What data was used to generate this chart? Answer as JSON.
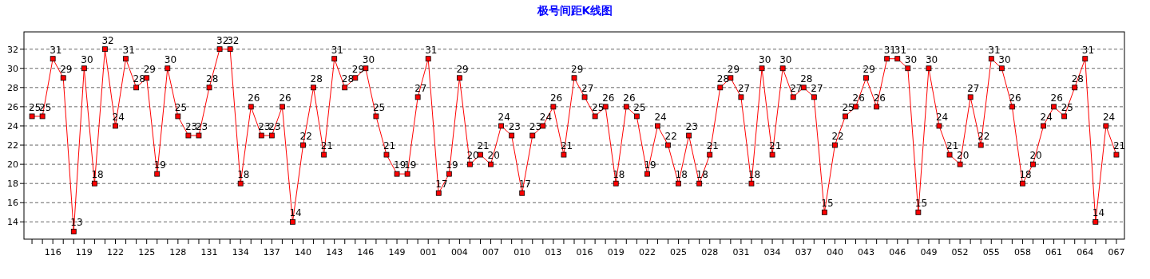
{
  "chart_data": {
    "type": "line",
    "title": "极号间距K线图",
    "categories": [
      null,
      null,
      "116",
      null,
      null,
      "119",
      null,
      null,
      "122",
      null,
      null,
      "125",
      null,
      null,
      "128",
      null,
      null,
      "131",
      null,
      null,
      "134",
      null,
      null,
      "137",
      null,
      null,
      "140",
      null,
      null,
      "143",
      null,
      null,
      "146",
      null,
      null,
      "149",
      null,
      null,
      "001",
      null,
      null,
      "004",
      null,
      null,
      "007",
      null,
      null,
      "010",
      null,
      null,
      "013",
      null,
      null,
      "016",
      null,
      null,
      "019",
      null,
      null,
      "022",
      null,
      null,
      "025",
      null,
      null,
      "028",
      null,
      null,
      "031",
      null,
      null,
      "034",
      null,
      null,
      "037",
      null,
      null,
      "040",
      null,
      null,
      "043",
      null,
      null,
      "046",
      null,
      null,
      "049",
      null,
      null,
      "052",
      null,
      null,
      "055",
      null,
      null,
      "058",
      null,
      null,
      "061",
      null,
      null,
      "064",
      null,
      null,
      "067"
    ],
    "series": [
      {
        "color": "#ff0000",
        "values": [
          25,
          25,
          31,
          29,
          13,
          30,
          18,
          32,
          24,
          31,
          28,
          29,
          19,
          30,
          25,
          23,
          23,
          28,
          32,
          32,
          18,
          26,
          23,
          23,
          26,
          14,
          22,
          28,
          21,
          31,
          28,
          29,
          30,
          25,
          21,
          19,
          19,
          27,
          31,
          17,
          19,
          29,
          20,
          21,
          20,
          24,
          23,
          17,
          23,
          24,
          26,
          21,
          29,
          27,
          25,
          26,
          18,
          26,
          25,
          19,
          24,
          22,
          18,
          23,
          18,
          21,
          28,
          29,
          27,
          18,
          30,
          21,
          30,
          27,
          28,
          27,
          15,
          22,
          25,
          26,
          29,
          26,
          31,
          31,
          30,
          15,
          30,
          24,
          21,
          20,
          27,
          22,
          31,
          30,
          26,
          18,
          20,
          24,
          26,
          25,
          28,
          31,
          14,
          24,
          21
        ]
      }
    ],
    "ylim": [
      12.2,
      33.8
    ],
    "yticks": [
      14,
      16,
      18,
      20,
      22,
      24,
      26,
      28,
      30,
      32
    ],
    "grid": "y",
    "marker": "square",
    "line_style": "solid",
    "data_labels": true
  }
}
